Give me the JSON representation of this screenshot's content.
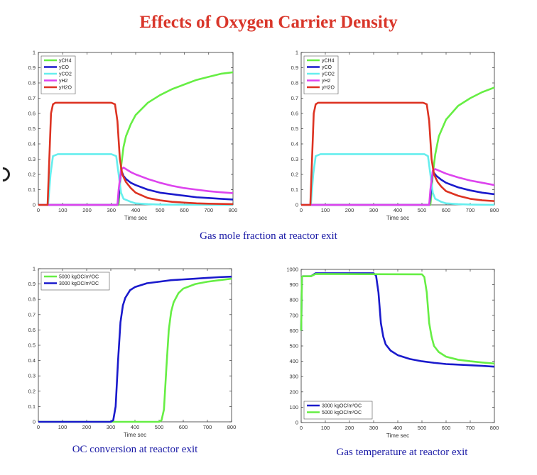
{
  "page": {
    "title": "Effects of Oxygen Carrier Density",
    "caption_top": "Gas mole fraction at reactor exit",
    "caption_bottom_left": "OC conversion at reactor exit",
    "caption_bottom_right": "Gas temperature at reactor exit"
  },
  "chart_data": [
    {
      "type": "line",
      "panel": "top-left",
      "xlabel": "Time sec",
      "ylabel": "",
      "xlim": [
        0,
        800
      ],
      "ylim": [
        0,
        1
      ],
      "xticks": [
        0,
        100,
        200,
        300,
        400,
        500,
        600,
        700,
        800
      ],
      "yticks": [
        0,
        0.1,
        0.2,
        0.3,
        0.4,
        0.5,
        0.6,
        0.7,
        0.8,
        0.9,
        1
      ],
      "legend_position": "top-left",
      "grid": false,
      "series": [
        {
          "name": "yCH4",
          "color": "#66ee44",
          "x": [
            0,
            330,
            332,
            340,
            350,
            360,
            380,
            400,
            450,
            500,
            550,
            600,
            650,
            700,
            750,
            800
          ],
          "y": [
            0,
            0,
            0.05,
            0.25,
            0.38,
            0.45,
            0.53,
            0.59,
            0.67,
            0.72,
            0.76,
            0.79,
            0.82,
            0.84,
            0.86,
            0.87
          ]
        },
        {
          "name": "yCO",
          "color": "#1a1acc",
          "x": [
            0,
            325,
            330,
            335,
            340,
            345,
            350,
            360,
            380,
            400,
            450,
            500,
            550,
            600,
            650,
            700,
            750,
            800
          ],
          "y": [
            0,
            0,
            0.05,
            0.15,
            0.22,
            0.21,
            0.19,
            0.17,
            0.145,
            0.13,
            0.1,
            0.08,
            0.07,
            0.06,
            0.05,
            0.045,
            0.04,
            0.035
          ]
        },
        {
          "name": "yCO2",
          "color": "#66eeee",
          "x": [
            0,
            40,
            50,
            60,
            80,
            300,
            320,
            330,
            340,
            350,
            380,
            400,
            450,
            500,
            800
          ],
          "y": [
            0,
            0,
            0.2,
            0.32,
            0.333,
            0.333,
            0.32,
            0.2,
            0.08,
            0.04,
            0.02,
            0.01,
            0.005,
            0.002,
            0
          ]
        },
        {
          "name": "yH2",
          "color": "#dd44ee",
          "x": [
            0,
            325,
            330,
            340,
            350,
            360,
            380,
            400,
            450,
            500,
            550,
            600,
            650,
            700,
            750,
            800
          ],
          "y": [
            0,
            0,
            0.1,
            0.23,
            0.245,
            0.235,
            0.215,
            0.2,
            0.17,
            0.145,
            0.125,
            0.11,
            0.1,
            0.09,
            0.083,
            0.077
          ]
        },
        {
          "name": "yH2O",
          "color": "#dd3322",
          "x": [
            0,
            38,
            45,
            52,
            60,
            70,
            80,
            300,
            315,
            325,
            335,
            345,
            360,
            380,
            400,
            450,
            500,
            550,
            600,
            650,
            700,
            800
          ],
          "y": [
            0,
            0,
            0.3,
            0.6,
            0.66,
            0.67,
            0.67,
            0.67,
            0.66,
            0.55,
            0.3,
            0.2,
            0.15,
            0.11,
            0.08,
            0.045,
            0.03,
            0.02,
            0.015,
            0.01,
            0.008,
            0.005
          ]
        }
      ]
    },
    {
      "type": "line",
      "panel": "top-right",
      "xlabel": "Time sec",
      "ylabel": "",
      "xlim": [
        0,
        800
      ],
      "ylim": [
        0,
        1
      ],
      "xticks": [
        0,
        100,
        200,
        300,
        400,
        500,
        600,
        700,
        800
      ],
      "yticks": [
        0,
        0.1,
        0.2,
        0.3,
        0.4,
        0.5,
        0.6,
        0.7,
        0.8,
        0.9,
        1
      ],
      "legend_position": "top-left",
      "grid": false,
      "series": [
        {
          "name": "yCH4",
          "color": "#66ee44",
          "x": [
            0,
            535,
            538,
            545,
            555,
            570,
            600,
            650,
            700,
            750,
            800
          ],
          "y": [
            0,
            0,
            0.05,
            0.2,
            0.33,
            0.45,
            0.56,
            0.65,
            0.7,
            0.74,
            0.77
          ]
        },
        {
          "name": "yCO",
          "color": "#1a1acc",
          "x": [
            0,
            530,
            535,
            540,
            545,
            550,
            560,
            580,
            600,
            650,
            700,
            750,
            800
          ],
          "y": [
            0,
            0,
            0.05,
            0.15,
            0.22,
            0.21,
            0.19,
            0.165,
            0.145,
            0.115,
            0.095,
            0.08,
            0.07
          ]
        },
        {
          "name": "yCO2",
          "color": "#66eeee",
          "x": [
            0,
            40,
            50,
            60,
            80,
            510,
            525,
            535,
            545,
            555,
            580,
            600,
            650,
            700,
            800
          ],
          "y": [
            0,
            0,
            0.2,
            0.32,
            0.333,
            0.333,
            0.32,
            0.2,
            0.08,
            0.04,
            0.02,
            0.01,
            0.005,
            0.002,
            0
          ]
        },
        {
          "name": "yH2",
          "color": "#dd44ee",
          "x": [
            0,
            530,
            535,
            545,
            555,
            570,
            600,
            650,
            700,
            750,
            800
          ],
          "y": [
            0,
            0,
            0.1,
            0.225,
            0.235,
            0.225,
            0.205,
            0.18,
            0.16,
            0.145,
            0.13
          ]
        },
        {
          "name": "yH2O",
          "color": "#dd3322",
          "x": [
            0,
            38,
            45,
            52,
            60,
            70,
            80,
            505,
            520,
            530,
            540,
            550,
            565,
            580,
            600,
            650,
            700,
            750,
            800
          ],
          "y": [
            0,
            0,
            0.3,
            0.6,
            0.66,
            0.67,
            0.67,
            0.67,
            0.66,
            0.55,
            0.3,
            0.2,
            0.15,
            0.12,
            0.09,
            0.06,
            0.04,
            0.03,
            0.025
          ]
        }
      ]
    },
    {
      "type": "line",
      "panel": "bottom-left",
      "xlabel": "Time sec",
      "ylabel": "",
      "xlim": [
        0,
        800
      ],
      "ylim": [
        0,
        1
      ],
      "xticks": [
        0,
        100,
        200,
        300,
        400,
        500,
        600,
        700,
        800
      ],
      "yticks": [
        0,
        0.1,
        0.2,
        0.3,
        0.4,
        0.5,
        0.6,
        0.7,
        0.8,
        0.9,
        1
      ],
      "legend_position": "top-left",
      "grid": false,
      "series": [
        {
          "name": "5000 kgOC/m³OC",
          "color": "#66ee44",
          "x": [
            0,
            500,
            510,
            520,
            530,
            540,
            550,
            560,
            580,
            600,
            650,
            700,
            750,
            800
          ],
          "y": [
            0,
            0,
            0.01,
            0.08,
            0.35,
            0.6,
            0.72,
            0.78,
            0.84,
            0.87,
            0.9,
            0.915,
            0.925,
            0.935
          ]
        },
        {
          "name": "3000 kgOC/m³OC",
          "color": "#1a1acc",
          "x": [
            0,
            300,
            310,
            320,
            330,
            340,
            350,
            360,
            380,
            400,
            450,
            500,
            550,
            600,
            650,
            700,
            750,
            800
          ],
          "y": [
            0,
            0,
            0.01,
            0.1,
            0.4,
            0.65,
            0.76,
            0.81,
            0.86,
            0.88,
            0.905,
            0.915,
            0.925,
            0.93,
            0.935,
            0.94,
            0.945,
            0.948
          ]
        }
      ]
    },
    {
      "type": "line",
      "panel": "bottom-right",
      "xlabel": "Time sec",
      "ylabel": "",
      "xlim": [
        0,
        800
      ],
      "ylim": [
        0,
        1000
      ],
      "xticks": [
        0,
        100,
        200,
        300,
        400,
        500,
        600,
        700,
        800
      ],
      "yticks": [
        0,
        100,
        200,
        300,
        400,
        500,
        600,
        700,
        800,
        900,
        1000
      ],
      "legend_position": "bottom-left",
      "grid": false,
      "series": [
        {
          "name": "3000 kgOC/m³OC",
          "color": "#1a1acc",
          "x": [
            0,
            3,
            6,
            40,
            60,
            300,
            310,
            320,
            330,
            340,
            350,
            370,
            400,
            450,
            500,
            550,
            600,
            650,
            700,
            750,
            800
          ],
          "y": [
            600,
            950,
            955,
            955,
            975,
            975,
            960,
            850,
            650,
            560,
            510,
            470,
            440,
            415,
            400,
            390,
            382,
            378,
            374,
            370,
            365
          ]
        },
        {
          "name": "5000 kgOC/m³OC",
          "color": "#66ee44",
          "x": [
            0,
            3,
            6,
            40,
            60,
            500,
            510,
            520,
            530,
            540,
            550,
            570,
            600,
            650,
            700,
            750,
            800
          ],
          "y": [
            600,
            950,
            955,
            955,
            970,
            968,
            950,
            850,
            650,
            560,
            500,
            460,
            430,
            410,
            400,
            392,
            385
          ]
        }
      ]
    }
  ]
}
